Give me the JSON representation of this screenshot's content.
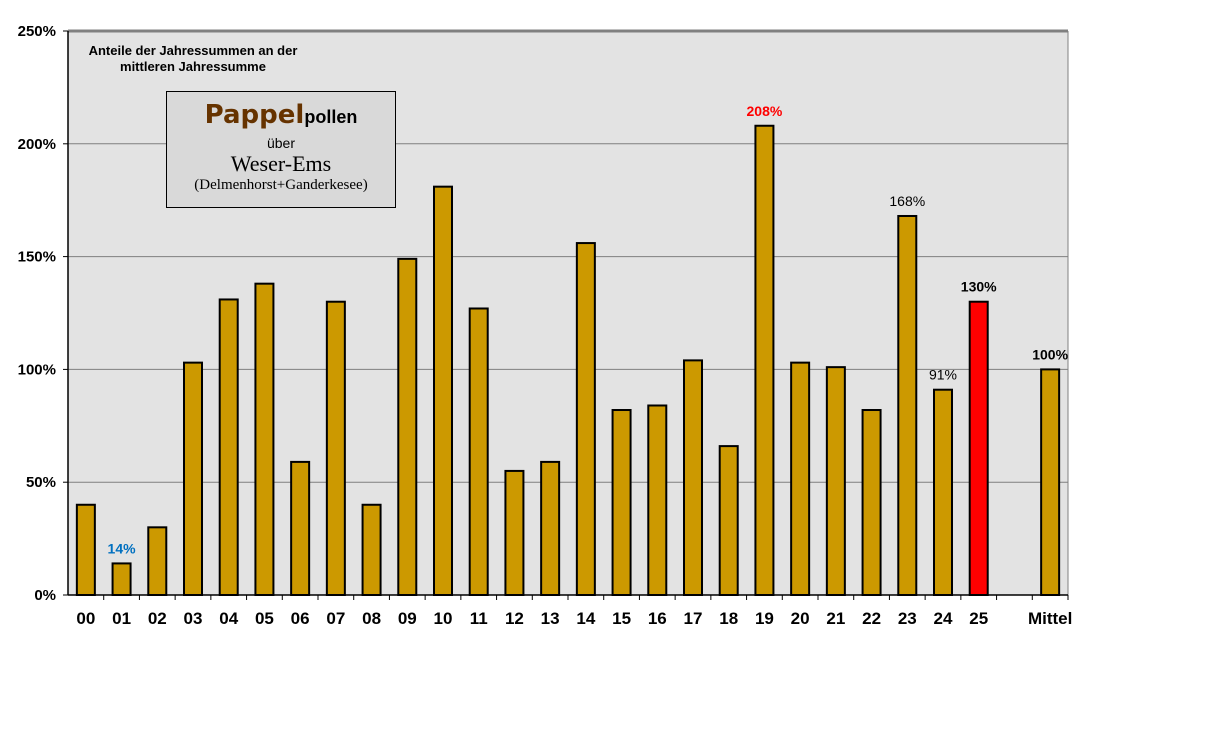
{
  "chart_data": {
    "type": "bar",
    "subtitle": "Anteile der Jahressummen  an der mittleren Jahressumme",
    "title": {
      "part1": "Pappel",
      "part2": "pollen",
      "line2": "über",
      "line3": "Weser-Ems",
      "line4": "(Delmenhorst+Ganderkesee)"
    },
    "categories": [
      "00",
      "01",
      "02",
      "03",
      "04",
      "05",
      "06",
      "07",
      "08",
      "09",
      "10",
      "11",
      "12",
      "13",
      "14",
      "15",
      "16",
      "17",
      "18",
      "19",
      "20",
      "21",
      "22",
      "23",
      "24",
      "25",
      "",
      "Mittel"
    ],
    "values": [
      40,
      14,
      30,
      103,
      131,
      138,
      59,
      130,
      40,
      149,
      181,
      127,
      55,
      59,
      156,
      82,
      84,
      104,
      66,
      208,
      103,
      101,
      82,
      168,
      91,
      130,
      null,
      100
    ],
    "bar_colors": {
      "default": "#cc9900",
      "highlight": "#ff0000"
    },
    "highlight_index": 25,
    "data_labels": [
      {
        "index": 1,
        "text": "14%",
        "color": "#0070c0",
        "bold": true
      },
      {
        "index": 19,
        "text": "208%",
        "color": "#ff0000",
        "bold": true
      },
      {
        "index": 23,
        "text": "168%",
        "color": "#000000",
        "bold": false
      },
      {
        "index": 24,
        "text": "91%",
        "color": "#000000",
        "bold": false
      },
      {
        "index": 25,
        "text": "130%",
        "color": "#000000",
        "bold": true
      },
      {
        "index": 27,
        "text": "100%",
        "color": "#000000",
        "bold": true
      }
    ],
    "yticks": [
      "0%",
      "50%",
      "100%",
      "150%",
      "200%",
      "250%"
    ],
    "ylim": [
      0,
      250
    ],
    "grid": true,
    "plot_background": "#e3e3e3",
    "xlabel": "",
    "ylabel": ""
  }
}
